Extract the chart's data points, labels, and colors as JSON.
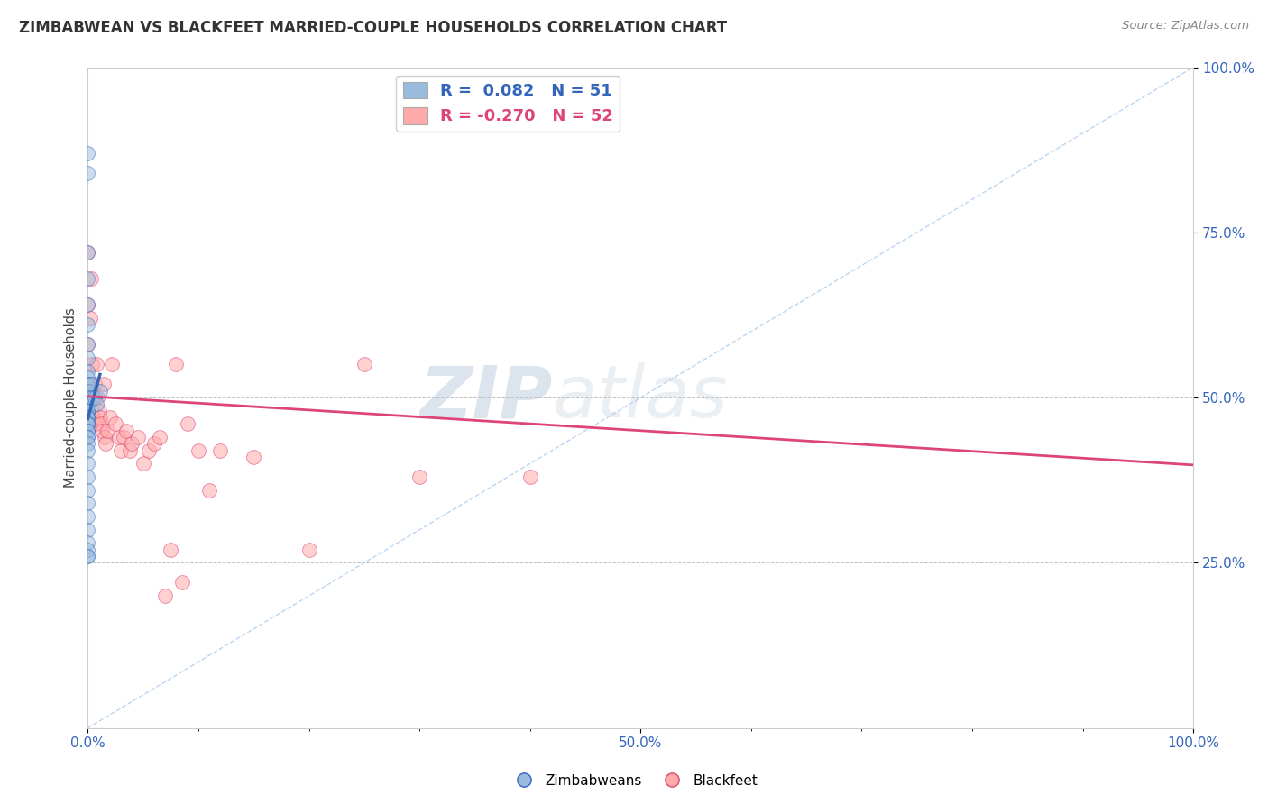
{
  "title": "ZIMBABWEAN VS BLACKFEET MARRIED-COUPLE HOUSEHOLDS CORRELATION CHART",
  "source": "Source: ZipAtlas.com",
  "ylabel": "Married-couple Households",
  "legend_label1": "Zimbabweans",
  "legend_label2": "Blackfeet",
  "r1": 0.082,
  "n1": 51,
  "r2": -0.27,
  "n2": 52,
  "xlim": [
    0,
    1.0
  ],
  "ylim": [
    0,
    1.0
  ],
  "color_blue": "#99BBDD",
  "color_pink": "#FFAAAA",
  "trendline_blue": "#3366BB",
  "trendline_pink": "#DD4477",
  "watermark_zip": "ZIP",
  "watermark_atlas": "atlas",
  "background_color": "#FFFFFF",
  "zimbabwean_x": [
    0.0,
    0.0,
    0.0,
    0.0,
    0.0,
    0.0,
    0.0,
    0.0,
    0.0,
    0.0,
    0.0,
    0.0,
    0.0,
    0.0,
    0.0,
    0.0,
    0.0,
    0.0,
    0.0,
    0.0,
    0.0,
    0.0,
    0.0,
    0.0,
    0.0,
    0.0,
    0.0,
    0.0,
    0.0,
    0.0,
    0.0,
    0.0,
    0.0,
    0.0,
    0.0,
    0.0,
    0.0,
    0.0,
    0.0,
    0.0,
    0.0,
    0.0,
    0.0,
    0.0,
    0.0,
    0.002,
    0.003,
    0.004,
    0.006,
    0.008,
    0.011
  ],
  "zimbabwean_y": [
    0.87,
    0.84,
    0.72,
    0.68,
    0.64,
    0.61,
    0.58,
    0.56,
    0.54,
    0.53,
    0.52,
    0.52,
    0.51,
    0.51,
    0.5,
    0.5,
    0.5,
    0.49,
    0.49,
    0.49,
    0.48,
    0.48,
    0.48,
    0.47,
    0.47,
    0.47,
    0.46,
    0.46,
    0.46,
    0.45,
    0.45,
    0.44,
    0.44,
    0.43,
    0.42,
    0.4,
    0.38,
    0.36,
    0.34,
    0.32,
    0.3,
    0.28,
    0.26,
    0.27,
    0.26,
    0.51,
    0.52,
    0.5,
    0.5,
    0.49,
    0.51
  ],
  "blackfeet_x": [
    0.0,
    0.0,
    0.0,
    0.0,
    0.0,
    0.0,
    0.001,
    0.002,
    0.003,
    0.004,
    0.004,
    0.005,
    0.005,
    0.006,
    0.007,
    0.008,
    0.009,
    0.01,
    0.011,
    0.012,
    0.013,
    0.014,
    0.015,
    0.016,
    0.018,
    0.02,
    0.022,
    0.025,
    0.028,
    0.03,
    0.032,
    0.035,
    0.038,
    0.04,
    0.045,
    0.05,
    0.055,
    0.06,
    0.065,
    0.07,
    0.075,
    0.08,
    0.085,
    0.09,
    0.1,
    0.11,
    0.12,
    0.15,
    0.2,
    0.25,
    0.3,
    0.4
  ],
  "blackfeet_y": [
    0.5,
    0.48,
    0.72,
    0.64,
    0.58,
    0.52,
    0.5,
    0.62,
    0.68,
    0.55,
    0.48,
    0.5,
    0.47,
    0.52,
    0.46,
    0.55,
    0.5,
    0.48,
    0.47,
    0.46,
    0.45,
    0.52,
    0.44,
    0.43,
    0.45,
    0.47,
    0.55,
    0.46,
    0.44,
    0.42,
    0.44,
    0.45,
    0.42,
    0.43,
    0.44,
    0.4,
    0.42,
    0.43,
    0.44,
    0.2,
    0.27,
    0.55,
    0.22,
    0.46,
    0.42,
    0.36,
    0.42,
    0.41,
    0.27,
    0.55,
    0.38,
    0.38
  ],
  "zim_trend_x0": 0.0,
  "zim_trend_x1": 0.011,
  "zim_trend_y0": 0.468,
  "zim_trend_y1": 0.535,
  "blk_trend_x0": 0.0,
  "blk_trend_x1": 1.0,
  "blk_trend_y0": 0.502,
  "blk_trend_y1": 0.398
}
